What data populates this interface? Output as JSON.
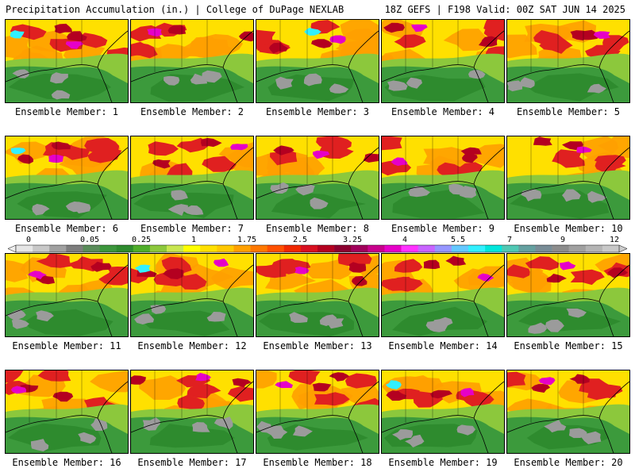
{
  "header": {
    "title": "Precipitation Accumulation (in.) | College of DuPage NEXLAB",
    "run_info": "18Z GEFS | F198 Valid: 00Z SAT JUN 14 2025"
  },
  "members": [
    {
      "label": "Ensemble Member: 1"
    },
    {
      "label": "Ensemble Member: 2"
    },
    {
      "label": "Ensemble Member: 3"
    },
    {
      "label": "Ensemble Member: 4"
    },
    {
      "label": "Ensemble Member: 5"
    },
    {
      "label": "Ensemble Member: 6"
    },
    {
      "label": "Ensemble Member: 7"
    },
    {
      "label": "Ensemble Member: 8"
    },
    {
      "label": "Ensemble Member: 9"
    },
    {
      "label": "Ensemble Member: 10"
    },
    {
      "label": "Ensemble Member: 11"
    },
    {
      "label": "Ensemble Member: 12"
    },
    {
      "label": "Ensemble Member: 13"
    },
    {
      "label": "Ensemble Member: 14"
    },
    {
      "label": "Ensemble Member: 15"
    },
    {
      "label": "Ensemble Member: 16"
    },
    {
      "label": "Ensemble Member: 17"
    },
    {
      "label": "Ensemble Member: 18"
    },
    {
      "label": "Ensemble Member: 19"
    },
    {
      "label": "Ensemble Member: 20"
    }
  ],
  "colorbar": {
    "tick_labels": [
      "0",
      "0.05",
      "0.25",
      "1",
      "1.75",
      "2.5",
      "3.25",
      "4",
      "5.5",
      "7",
      "9",
      "12"
    ],
    "colors": [
      "#e6e6e6",
      "#c8c8c8",
      "#a0a0a0",
      "#7d7d7d",
      "#5a8c5a",
      "#3c963c",
      "#2e8b2e",
      "#4fae2a",
      "#8cc83c",
      "#c8e650",
      "#ffff00",
      "#ffe000",
      "#ffc800",
      "#ffa000",
      "#ff7800",
      "#ff5000",
      "#f02800",
      "#d81020",
      "#b40020",
      "#8c0030",
      "#a0005a",
      "#c8008c",
      "#e600c8",
      "#ff32ff",
      "#c864ff",
      "#9696ff",
      "#64c8ff",
      "#32f0ff",
      "#00e6dc",
      "#50c8b4",
      "#64a0a0",
      "#788c96",
      "#8c8c8c",
      "#a0a0a0",
      "#b4b4b4",
      "#c8c8c8"
    ]
  }
}
